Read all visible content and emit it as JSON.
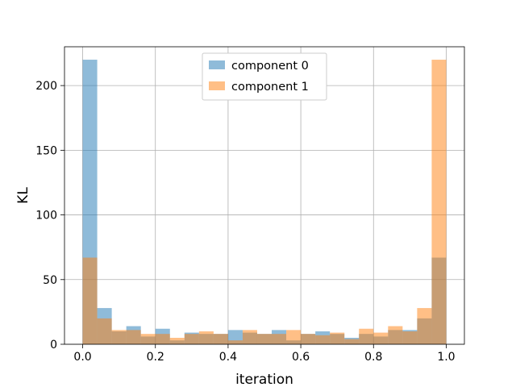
{
  "chart_data": {
    "type": "bar",
    "subtype": "overlapping-histogram",
    "title": "",
    "xlabel": "iteration",
    "ylabel": "KL",
    "xlim": [
      -0.05,
      1.05
    ],
    "ylim": [
      0,
      230
    ],
    "xticks": [
      0.0,
      0.2,
      0.4,
      0.6,
      0.8,
      1.0
    ],
    "xtick_labels": [
      "0.0",
      "0.2",
      "0.4",
      "0.6",
      "0.8",
      "1.0"
    ],
    "yticks": [
      0,
      50,
      100,
      150,
      200
    ],
    "ytick_labels": [
      "0",
      "50",
      "100",
      "150",
      "200"
    ],
    "grid": true,
    "legend_position": "top-center",
    "bin_edges": [
      0.0,
      0.04,
      0.08,
      0.12,
      0.16,
      0.2,
      0.24,
      0.28,
      0.32,
      0.36,
      0.4,
      0.44,
      0.48,
      0.52,
      0.56,
      0.6,
      0.64,
      0.68,
      0.72,
      0.76,
      0.8,
      0.84,
      0.88,
      0.92,
      0.96,
      1.0
    ],
    "series": [
      {
        "name": "component 0",
        "color": "#1f77b4",
        "alpha": 0.5,
        "values": [
          220,
          28,
          10,
          14,
          6,
          12,
          3,
          9,
          8,
          8,
          11,
          9,
          8,
          11,
          3,
          8,
          10,
          8,
          5,
          8,
          6,
          11,
          11,
          20,
          67
        ]
      },
      {
        "name": "component 1",
        "color": "#ff7f0e",
        "alpha": 0.5,
        "values": [
          67,
          20,
          11,
          11,
          8,
          8,
          5,
          8,
          10,
          8,
          3,
          11,
          8,
          8,
          11,
          8,
          7,
          9,
          4,
          12,
          9,
          14,
          10,
          28,
          220
        ]
      }
    ]
  }
}
